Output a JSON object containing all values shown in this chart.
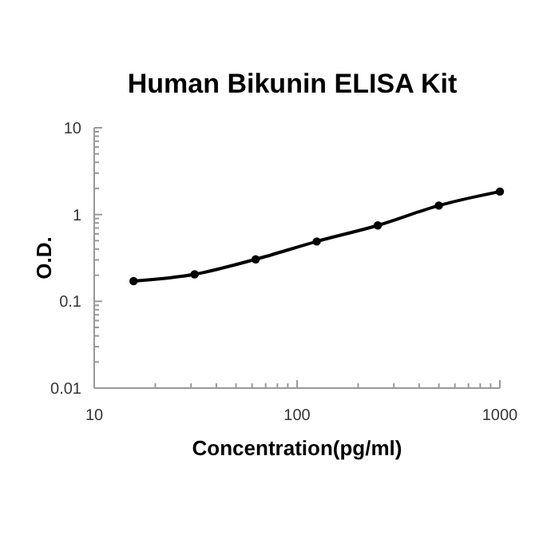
{
  "chart_data": {
    "type": "line",
    "title": "Human Bikunin ELISA Kit",
    "xlabel": "Concentration(pg/ml)",
    "ylabel": "O.D.",
    "x": [
      15.625,
      31.25,
      62.5,
      125,
      250,
      500,
      1000
    ],
    "series": [
      {
        "color": "#000000",
        "values": [
          0.171,
          0.205,
          0.305,
          0.49,
          0.75,
          1.27,
          1.84
        ]
      }
    ],
    "xlim": [
      10,
      1000
    ],
    "xticks": [
      10,
      100,
      1000
    ],
    "ylim": [
      0.01,
      10
    ],
    "yticks": [
      0.01,
      0.1,
      1,
      10
    ],
    "log": "xy",
    "marker": "circle",
    "line_style": "solid"
  }
}
